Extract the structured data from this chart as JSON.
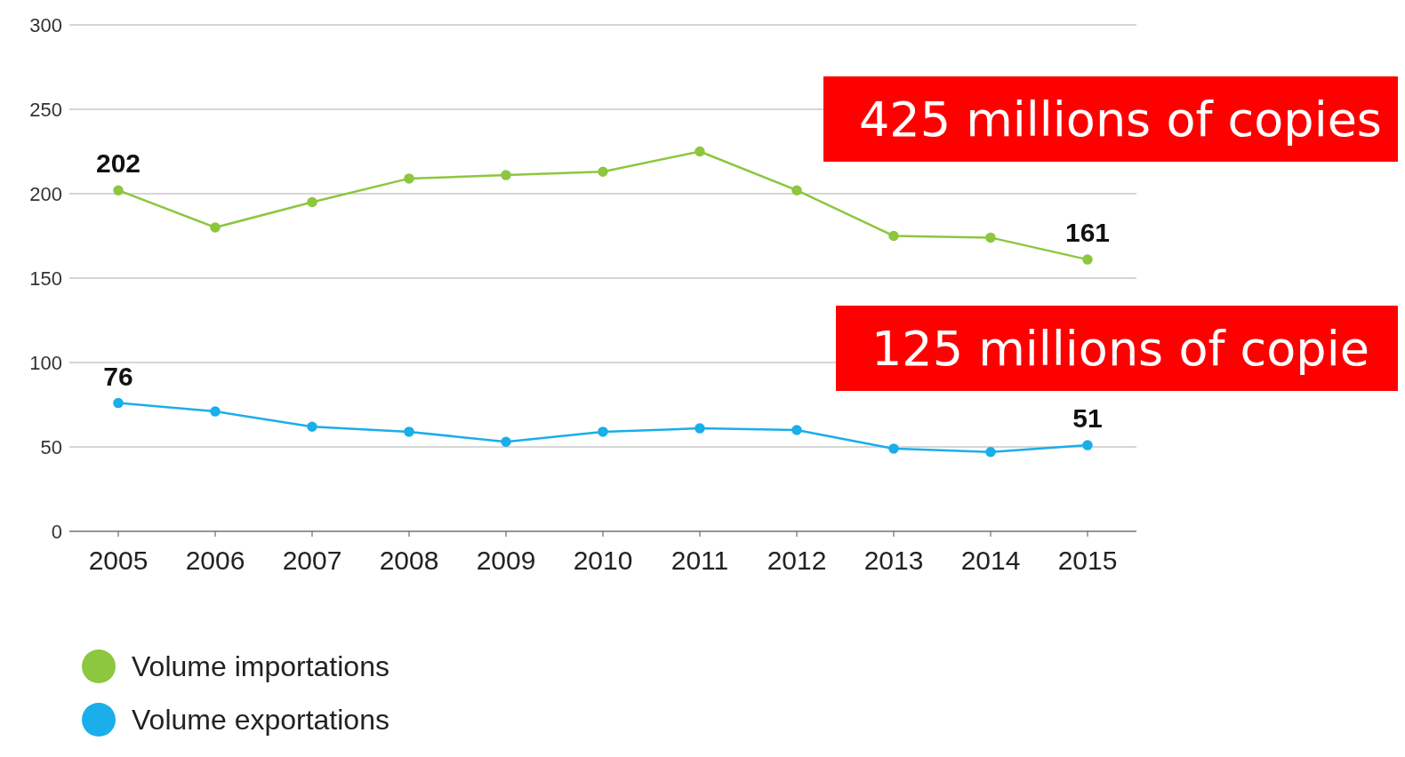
{
  "chart_data": {
    "type": "line",
    "categories": [
      "2005",
      "2006",
      "2007",
      "2008",
      "2009",
      "2010",
      "2011",
      "2012",
      "2013",
      "2014",
      "2015"
    ],
    "series": [
      {
        "name": "Volume importations",
        "color": "#8dc63f",
        "values": [
          202,
          180,
          195,
          209,
          211,
          213,
          225,
          202,
          175,
          174,
          161
        ],
        "value_labels": [
          "202",
          null,
          null,
          null,
          null,
          null,
          null,
          null,
          null,
          null,
          "161"
        ]
      },
      {
        "name": "Volume exportations",
        "color": "#1aaeea",
        "values": [
          76,
          71,
          62,
          59,
          53,
          59,
          61,
          60,
          49,
          47,
          51
        ],
        "value_labels": [
          "76",
          null,
          null,
          null,
          null,
          null,
          null,
          null,
          null,
          null,
          "51"
        ]
      }
    ],
    "ylim": [
      0,
      300
    ],
    "yticks": [
      0,
      50,
      100,
      150,
      200,
      250,
      300
    ],
    "grid": "y",
    "marker": "circle",
    "line_style": "solid",
    "legend": "bottom left",
    "annotations": [
      "425 millions of copies",
      "125 millions of copie"
    ]
  }
}
